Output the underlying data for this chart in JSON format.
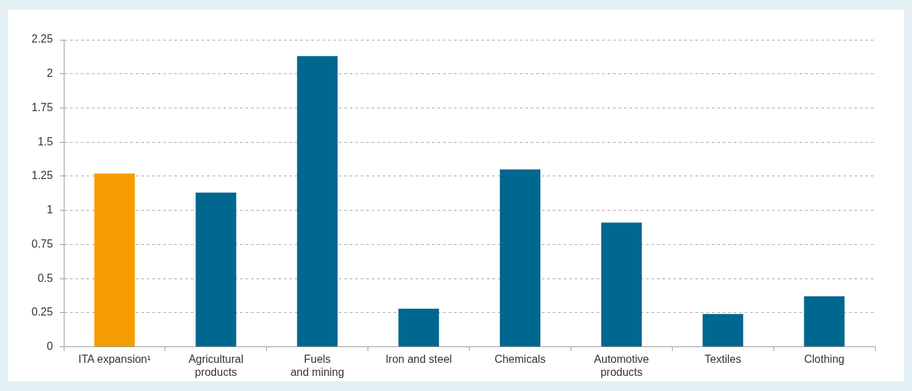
{
  "chart_data": {
    "type": "bar",
    "categories": [
      "ITA expansion¹",
      "Agricultural products",
      "Fuels and mining",
      "Iron and steel",
      "Chemicals",
      "Automotive products",
      "Textiles",
      "Clothing"
    ],
    "values": [
      1.27,
      1.13,
      2.13,
      0.28,
      1.3,
      0.91,
      0.24,
      0.37
    ],
    "colors": [
      "#f59d00",
      "#006890",
      "#006890",
      "#006890",
      "#006890",
      "#006890",
      "#006890",
      "#006890"
    ],
    "ylim": [
      0,
      2.25
    ],
    "yticks": [
      0,
      0.25,
      0.5,
      0.75,
      1,
      1.25,
      1.5,
      1.75,
      2,
      2.25
    ],
    "grid": "y"
  }
}
